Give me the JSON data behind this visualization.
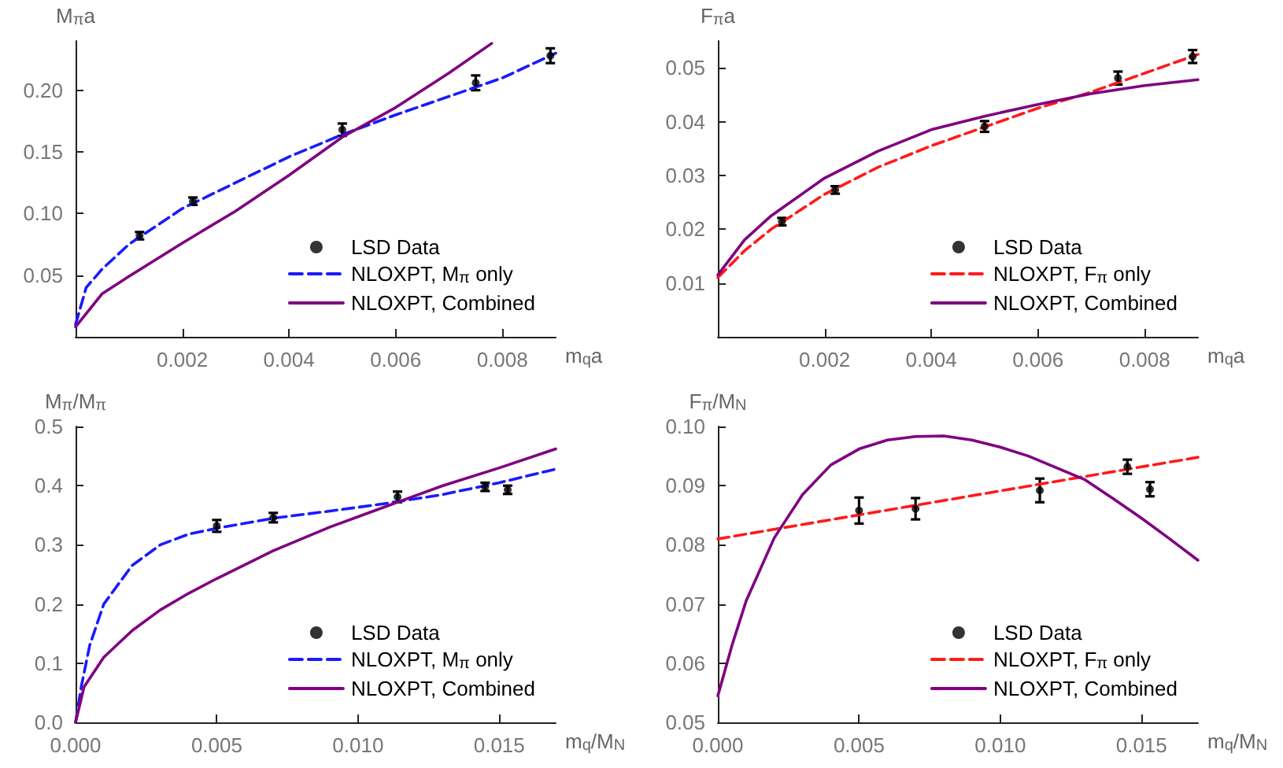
{
  "chart_data": [
    {
      "type": "scatter",
      "xlabel": "m$_{q}$a",
      "ylabel": "M$_{π}$a",
      "xlim": [
        0,
        0.009
      ],
      "ylim": [
        0,
        0.24
      ],
      "xticks": [
        0.002,
        0.004,
        0.006,
        0.008
      ],
      "yticks": [
        {
          "value": 0.05,
          "label": "0.05"
        },
        {
          "value": 0.1,
          "label": "0.10"
        },
        {
          "value": 0.15,
          "label": "0.15"
        },
        {
          "value": 0.2,
          "label": "0.20"
        }
      ],
      "grid": false,
      "legend": "bottom right",
      "series": [
        {
          "name": "LSD Data",
          "type": "scatter",
          "marker": "circle",
          "color": "#000000",
          "x": [
            0.0012,
            0.0022,
            0.005,
            0.0075,
            0.0089
          ],
          "values": [
            0.082,
            0.11,
            0.168,
            0.206,
            0.228
          ],
          "errors": [
            0.003,
            0.003,
            0.005,
            0.006,
            0.006
          ]
        },
        {
          "name": "NLOXPT, M$_{π}$ only",
          "type": "line",
          "line_style": "dashed",
          "color": "#1a1aff",
          "x": [
            0,
            0.0002,
            0.0005,
            0.001,
            0.002,
            0.003,
            0.004,
            0.005,
            0.006,
            0.007,
            0.008,
            0.009
          ],
          "values": [
            0.01,
            0.04,
            0.055,
            0.075,
            0.104,
            0.125,
            0.146,
            0.164,
            0.18,
            0.195,
            0.21,
            0.23
          ]
        },
        {
          "name": "NLOXPT, Combined",
          "type": "line",
          "line_style": "solid",
          "color": "#800080",
          "x": [
            0,
            0.0005,
            0.001,
            0.002,
            0.003,
            0.004,
            0.005,
            0.006,
            0.007,
            0.0078
          ],
          "values": [
            0.008,
            0.035,
            0.049,
            0.076,
            0.102,
            0.131,
            0.162,
            0.186,
            0.214,
            0.238
          ]
        }
      ]
    },
    {
      "type": "scatter",
      "xlabel": "m$_{q}$a",
      "ylabel": "F$_{π}$a",
      "xlim": [
        0,
        0.009
      ],
      "ylim": [
        0,
        0.055
      ],
      "xticks": [
        0.002,
        0.004,
        0.006,
        0.008
      ],
      "yticks": [
        0.01,
        0.02,
        0.03,
        0.04,
        0.05
      ],
      "grid": false,
      "legend": "bottom right",
      "series": [
        {
          "name": "LSD Data",
          "type": "scatter",
          "marker": "circle",
          "color": "#000000",
          "x": [
            0.0012,
            0.0022,
            0.005,
            0.0075,
            0.0089
          ],
          "values": [
            0.0214,
            0.0273,
            0.0391,
            0.0481,
            0.0521
          ],
          "errors": [
            0.0007,
            0.0007,
            0.001,
            0.0012,
            0.0012
          ]
        },
        {
          "name": "NLOXPT, F$_{π}$ only",
          "type": "line",
          "line_style": "dashed",
          "color": "#ff1a1a",
          "x": [
            0,
            0.0005,
            0.001,
            0.002,
            0.003,
            0.004,
            0.005,
            0.006,
            0.007,
            0.008,
            0.009
          ],
          "values": [
            0.011,
            0.016,
            0.02,
            0.0265,
            0.0315,
            0.0355,
            0.039,
            0.0425,
            0.0455,
            0.049,
            0.0525
          ]
        },
        {
          "name": "NLOXPT, Combined",
          "type": "line",
          "line_style": "solid",
          "color": "#800080",
          "x": [
            0,
            0.0005,
            0.001,
            0.002,
            0.003,
            0.004,
            0.005,
            0.006,
            0.007,
            0.008,
            0.009
          ],
          "values": [
            0.0115,
            0.018,
            0.0225,
            0.0295,
            0.0345,
            0.0385,
            0.041,
            0.0432,
            0.0452,
            0.0467,
            0.0478
          ]
        }
      ]
    },
    {
      "type": "scatter",
      "xlabel": "m$_{q}$/M$_{N}$",
      "ylabel": "M$_{π}$/M$_{π}$",
      "xlim": [
        0,
        0.017
      ],
      "ylim": [
        0,
        0.5
      ],
      "xticks": [
        {
          "value": 0,
          "label": "0.000"
        },
        {
          "value": 0.005,
          "label": "0.005"
        },
        {
          "value": 0.01,
          "label": "0.010"
        },
        {
          "value": 0.015,
          "label": "0.015"
        }
      ],
      "yticks": [
        {
          "value": 0,
          "label": "0.0"
        },
        0.1,
        0.2,
        0.3,
        0.4,
        0.5
      ],
      "grid": false,
      "legend": "bottom right",
      "series": [
        {
          "name": "LSD Data",
          "type": "scatter",
          "marker": "circle",
          "color": "#000000",
          "x": [
            0.005,
            0.007,
            0.0114,
            0.0145,
            0.0153
          ],
          "values": [
            0.332,
            0.346,
            0.381,
            0.398,
            0.393
          ],
          "errors": [
            0.01,
            0.008,
            0.009,
            0.007,
            0.007
          ]
        },
        {
          "name": "NLOXPT, M$_{π}$ only",
          "type": "line",
          "line_style": "dashed",
          "color": "#1a1aff",
          "x": [
            0,
            0.0002,
            0.0005,
            0.001,
            0.002,
            0.003,
            0.004,
            0.005,
            0.007,
            0.009,
            0.011,
            0.013,
            0.015,
            0.017
          ],
          "values": [
            0,
            0.06,
            0.13,
            0.2,
            0.265,
            0.3,
            0.318,
            0.328,
            0.345,
            0.357,
            0.37,
            0.385,
            0.405,
            0.428
          ]
        },
        {
          "name": "NLOXPT, Combined",
          "type": "line",
          "line_style": "solid",
          "color": "#800080",
          "x": [
            0,
            0.0003,
            0.001,
            0.002,
            0.003,
            0.004,
            0.005,
            0.007,
            0.009,
            0.011,
            0.013,
            0.015,
            0.017
          ],
          "values": [
            0,
            0.06,
            0.11,
            0.155,
            0.19,
            0.218,
            0.243,
            0.29,
            0.33,
            0.365,
            0.4,
            0.43,
            0.462
          ]
        }
      ]
    },
    {
      "type": "scatter",
      "xlabel": "m$_{q}$/M$_{N}$",
      "ylabel": "F$_{π}$/M$_{N}$",
      "xlim": [
        0,
        0.017
      ],
      "ylim": [
        0.05,
        0.1
      ],
      "xticks": [
        {
          "value": 0,
          "label": "0.000"
        },
        {
          "value": 0.005,
          "label": "0.005"
        },
        {
          "value": 0.01,
          "label": "0.010"
        },
        {
          "value": 0.015,
          "label": "0.015"
        }
      ],
      "yticks": [
        0.05,
        0.06,
        0.07,
        0.08,
        0.09,
        {
          "value": 0.1,
          "label": "0.10"
        }
      ],
      "grid": false,
      "legend": "bottom right",
      "series": [
        {
          "name": "LSD Data",
          "type": "scatter",
          "marker": "circle",
          "color": "#000000",
          "x": [
            0.005,
            0.007,
            0.0114,
            0.0145,
            0.0153
          ],
          "values": [
            0.0858,
            0.0861,
            0.0892,
            0.0932,
            0.0894
          ],
          "errors": [
            0.0022,
            0.0018,
            0.002,
            0.0012,
            0.0012
          ]
        },
        {
          "name": "NLOXPT, F$_{π}$ only",
          "type": "line",
          "line_style": "dashed",
          "color": "#ff1a1a",
          "x": [
            0,
            0.017
          ],
          "values": [
            0.081,
            0.0948
          ]
        },
        {
          "name": "NLOXPT, Combined",
          "type": "line",
          "line_style": "solid",
          "color": "#800080",
          "x": [
            0,
            0.0005,
            0.001,
            0.002,
            0.003,
            0.004,
            0.005,
            0.006,
            0.007,
            0.008,
            0.009,
            0.01,
            0.011,
            0.012,
            0.013,
            0.014,
            0.015,
            0.016,
            0.017
          ],
          "values": [
            0.0545,
            0.063,
            0.0705,
            0.0812,
            0.0885,
            0.0935,
            0.0962,
            0.0977,
            0.0983,
            0.0984,
            0.0977,
            0.0965,
            0.095,
            0.093,
            0.091,
            0.0878,
            0.0845,
            0.081,
            0.0774
          ]
        }
      ]
    }
  ]
}
